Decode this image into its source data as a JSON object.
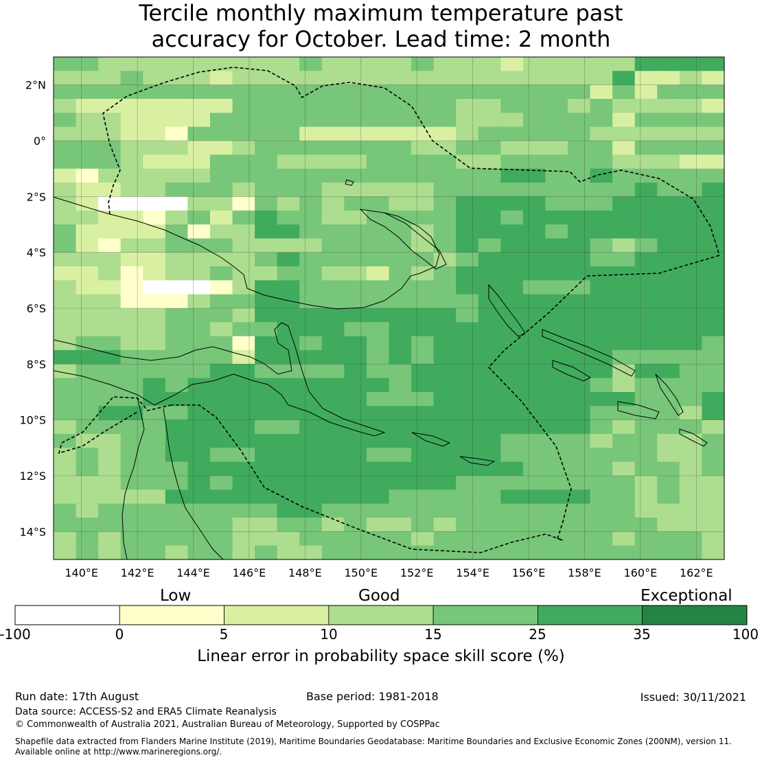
{
  "title_line1": "Tercile monthly maximum temperature past",
  "title_line2": "accuracy for October. Lead time: 2 month",
  "map": {
    "lon_range": [
      139,
      163
    ],
    "lat_range": [
      -15,
      3
    ],
    "lon_ticks": [
      "140°E",
      "142°E",
      "144°E",
      "146°E",
      "148°E",
      "150°E",
      "152°E",
      "154°E",
      "156°E",
      "158°E",
      "160°E",
      "162°E"
    ],
    "lat_ticks": [
      "2°N",
      "0°",
      "2°S",
      "4°S",
      "6°S",
      "8°S",
      "10°S",
      "12°S",
      "14°S"
    ],
    "grid_rows": [
      "443333333334333343332333335555",
      "333433323333333333333333352232",
      "444444444444444444444444242444",
      "322222224444444444334443433332",
      "433222244444444444333444424444",
      "333221444442222222344444333333",
      "444333223444444433443334424444",
      "444322244433334444334444433322",
      "213333344444444444445544544444",
      "322334443444333334444444445445",
      "320000331434344334555544455555",
      "332213424544334444554555555555",
      "422224133554444434555545555555",
      "421334443333444434545555434555",
      "333223333454444443455555445555",
      "223123343344332434555555555555",
      "322100013554444444555444555555",
      "333111344554444444455555555555",
      "333334443555555555455555555555",
      "333334434455544555555555555555",
      "344334441554554545555555555554",
      "555444442555554545555555544444",
      "344444455444454455555555535544",
      "444454555555555455555555434444",
      "444455555555554445555555554445",
      "445544555555555555555555444435",
      "344445555445555555555555434443",
      "433445555555555555554444344334",
      "343445544555554455554444444334",
      "343444555555555555555444434434",
      "333444545555555555444444443433",
      "333335555555555444445555443433",
      "434444444455444444444444443333",
      "444444443344343343444444444333",
      "343444443334444434444444434443",
      "343443443433444444444444444443"
    ],
    "color_classes": [
      "#ffffff",
      "#ffffcc",
      "#d9f0a3",
      "#addd8e",
      "#78c679",
      "#41ab5d",
      "#238443"
    ]
  },
  "colorbar": {
    "colors": [
      "#ffffff",
      "#ffffcc",
      "#d9f0a3",
      "#addd8e",
      "#78c679",
      "#41ab5d",
      "#238443"
    ],
    "ticks": [
      "-100",
      "0",
      "5",
      "10",
      "15",
      "25",
      "35",
      "100"
    ],
    "categories": [
      "Low",
      "Good",
      "Exceptional"
    ],
    "label": "Linear error in probability space skill score (%)"
  },
  "footer": {
    "run_date": "Run date: 17th August",
    "base_period": "Base period: 1981-2018",
    "issued": "Issued: 30/11/2021",
    "data_source": "Data source: ACCESS-S2 and ERA5 Climate Reanalysis",
    "copyright": "© Commonwealth of Australia 2021, Australian Bureau of Meteorology, Supported by COSPPac",
    "shapefile_line1": "Shapefile data extracted from Flanders Marine Institute (2019), Maritime Boundaries Geodatabase: Maritime Boundaries and Exclusive Economic Zones (200NM), version 11.",
    "shapefile_line2": "Available online at http://www.marineregions.org/."
  }
}
